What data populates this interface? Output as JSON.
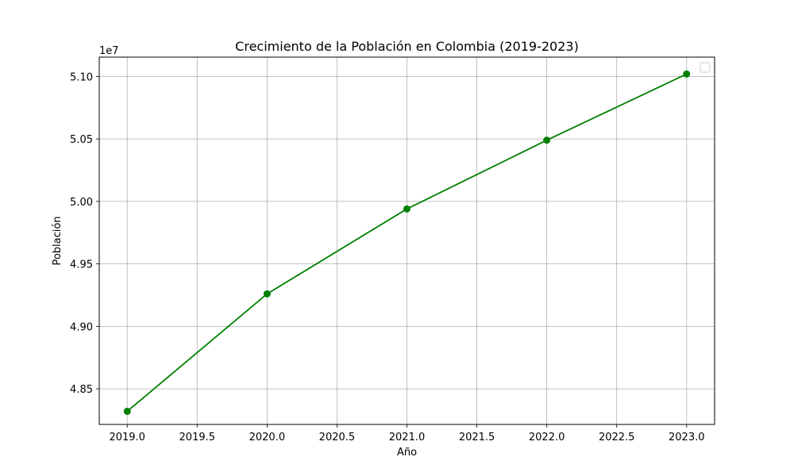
{
  "chart_data": {
    "type": "line",
    "title": "Crecimiento de la Población en Colombia (2019-2023)",
    "xlabel": "Año",
    "ylabel": "Población",
    "y_offset_label": "1e7",
    "x": [
      2019,
      2020,
      2021,
      2022,
      2023
    ],
    "series": [
      {
        "values": [
          48320000,
          49260000,
          49940000,
          50490000,
          51020000
        ],
        "color": "#008000",
        "marker": "circle"
      }
    ],
    "xlim": [
      2018.8,
      2023.2
    ],
    "ylim": [
      48215000,
      51155000
    ],
    "x_ticks": [
      2019.0,
      2019.5,
      2020.0,
      2020.5,
      2021.0,
      2021.5,
      2022.0,
      2022.5,
      2023.0
    ],
    "x_tick_labels": [
      "2019.0",
      "2019.5",
      "2020.0",
      "2020.5",
      "2021.0",
      "2021.5",
      "2022.0",
      "2022.5",
      "2023.0"
    ],
    "y_ticks": [
      48500000,
      49000000,
      49500000,
      50000000,
      50500000,
      51000000
    ],
    "y_tick_labels": [
      "4.85",
      "4.90",
      "4.95",
      "5.00",
      "5.05",
      "5.10"
    ],
    "grid": true,
    "legend": {
      "placement": "top-right",
      "entries": []
    }
  }
}
